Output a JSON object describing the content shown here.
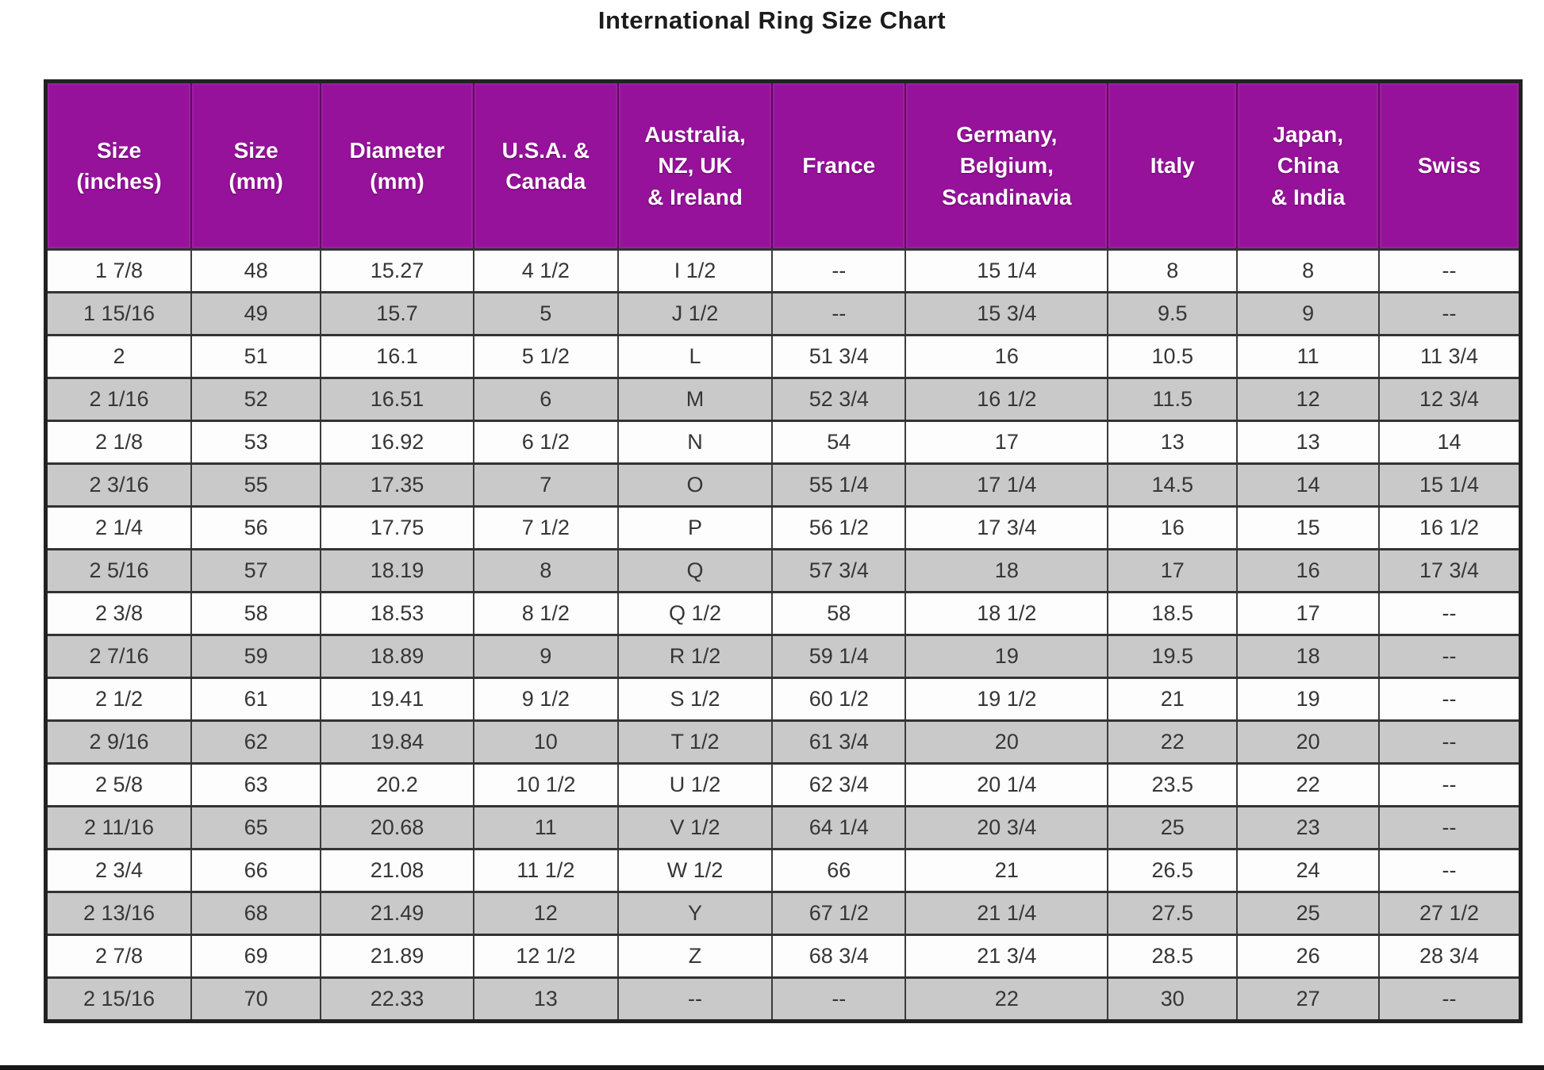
{
  "page": {
    "title": "International Ring Size Chart"
  },
  "colors": {
    "header_background": "#97129b",
    "header_text": "#ffffff",
    "alt_row_background": "#c9c9c9",
    "row_background": "#fdfdfd",
    "border": "#333333",
    "title_text": "#1c1c1c"
  },
  "chart_data": {
    "type": "table",
    "title": "International Ring Size Chart",
    "columns": [
      "Size\n(inches)",
      "Size\n(mm)",
      "Diameter\n(mm)",
      "U.S.A. &\nCanada",
      "Australia,\nNZ, UK\n& Ireland",
      "France",
      "Germany,\nBelgium,\nScandinavia",
      "Italy",
      "Japan,\nChina\n& India",
      "Swiss"
    ],
    "rows": [
      [
        "1 7/8",
        "48",
        "15.27",
        "4 1/2",
        "I 1/2",
        "--",
        "15 1/4",
        "8",
        "8",
        "--"
      ],
      [
        "1 15/16",
        "49",
        "15.7",
        "5",
        "J 1/2",
        "--",
        "15 3/4",
        "9.5",
        "9",
        "--"
      ],
      [
        "2",
        "51",
        "16.1",
        "5 1/2",
        "L",
        "51 3/4",
        "16",
        "10.5",
        "11",
        "11 3/4"
      ],
      [
        "2 1/16",
        "52",
        "16.51",
        "6",
        "M",
        "52 3/4",
        "16 1/2",
        "11.5",
        "12",
        "12 3/4"
      ],
      [
        "2 1/8",
        "53",
        "16.92",
        "6 1/2",
        "N",
        "54",
        "17",
        "13",
        "13",
        "14"
      ],
      [
        "2 3/16",
        "55",
        "17.35",
        "7",
        "O",
        "55 1/4",
        "17 1/4",
        "14.5",
        "14",
        "15 1/4"
      ],
      [
        "2 1/4",
        "56",
        "17.75",
        "7 1/2",
        "P",
        "56 1/2",
        "17 3/4",
        "16",
        "15",
        "16 1/2"
      ],
      [
        "2 5/16",
        "57",
        "18.19",
        "8",
        "Q",
        "57 3/4",
        "18",
        "17",
        "16",
        "17 3/4"
      ],
      [
        "2 3/8",
        "58",
        "18.53",
        "8 1/2",
        "Q 1/2",
        "58",
        "18 1/2",
        "18.5",
        "17",
        "--"
      ],
      [
        "2 7/16",
        "59",
        "18.89",
        "9",
        "R 1/2",
        "59 1/4",
        "19",
        "19.5",
        "18",
        "--"
      ],
      [
        "2 1/2",
        "61",
        "19.41",
        "9 1/2",
        "S 1/2",
        "60 1/2",
        "19 1/2",
        "21",
        "19",
        "--"
      ],
      [
        "2 9/16",
        "62",
        "19.84",
        "10",
        "T 1/2",
        "61 3/4",
        "20",
        "22",
        "20",
        "--"
      ],
      [
        "2 5/8",
        "63",
        "20.2",
        "10 1/2",
        "U 1/2",
        "62 3/4",
        "20 1/4",
        "23.5",
        "22",
        "--"
      ],
      [
        "2 11/16",
        "65",
        "20.68",
        "11",
        "V 1/2",
        "64 1/4",
        "20 3/4",
        "25",
        "23",
        "--"
      ],
      [
        "2 3/4",
        "66",
        "21.08",
        "11 1/2",
        "W 1/2",
        "66",
        "21",
        "26.5",
        "24",
        "--"
      ],
      [
        "2 13/16",
        "68",
        "21.49",
        "12",
        "Y",
        "67 1/2",
        "21 1/4",
        "27.5",
        "25",
        "27 1/2"
      ],
      [
        "2 7/8",
        "69",
        "21.89",
        "12 1/2",
        "Z",
        "68 3/4",
        "21 3/4",
        "28.5",
        "26",
        "28 3/4"
      ],
      [
        "2 15/16",
        "70",
        "22.33",
        "13",
        "--",
        "--",
        "22",
        "30",
        "27",
        "--"
      ]
    ]
  }
}
